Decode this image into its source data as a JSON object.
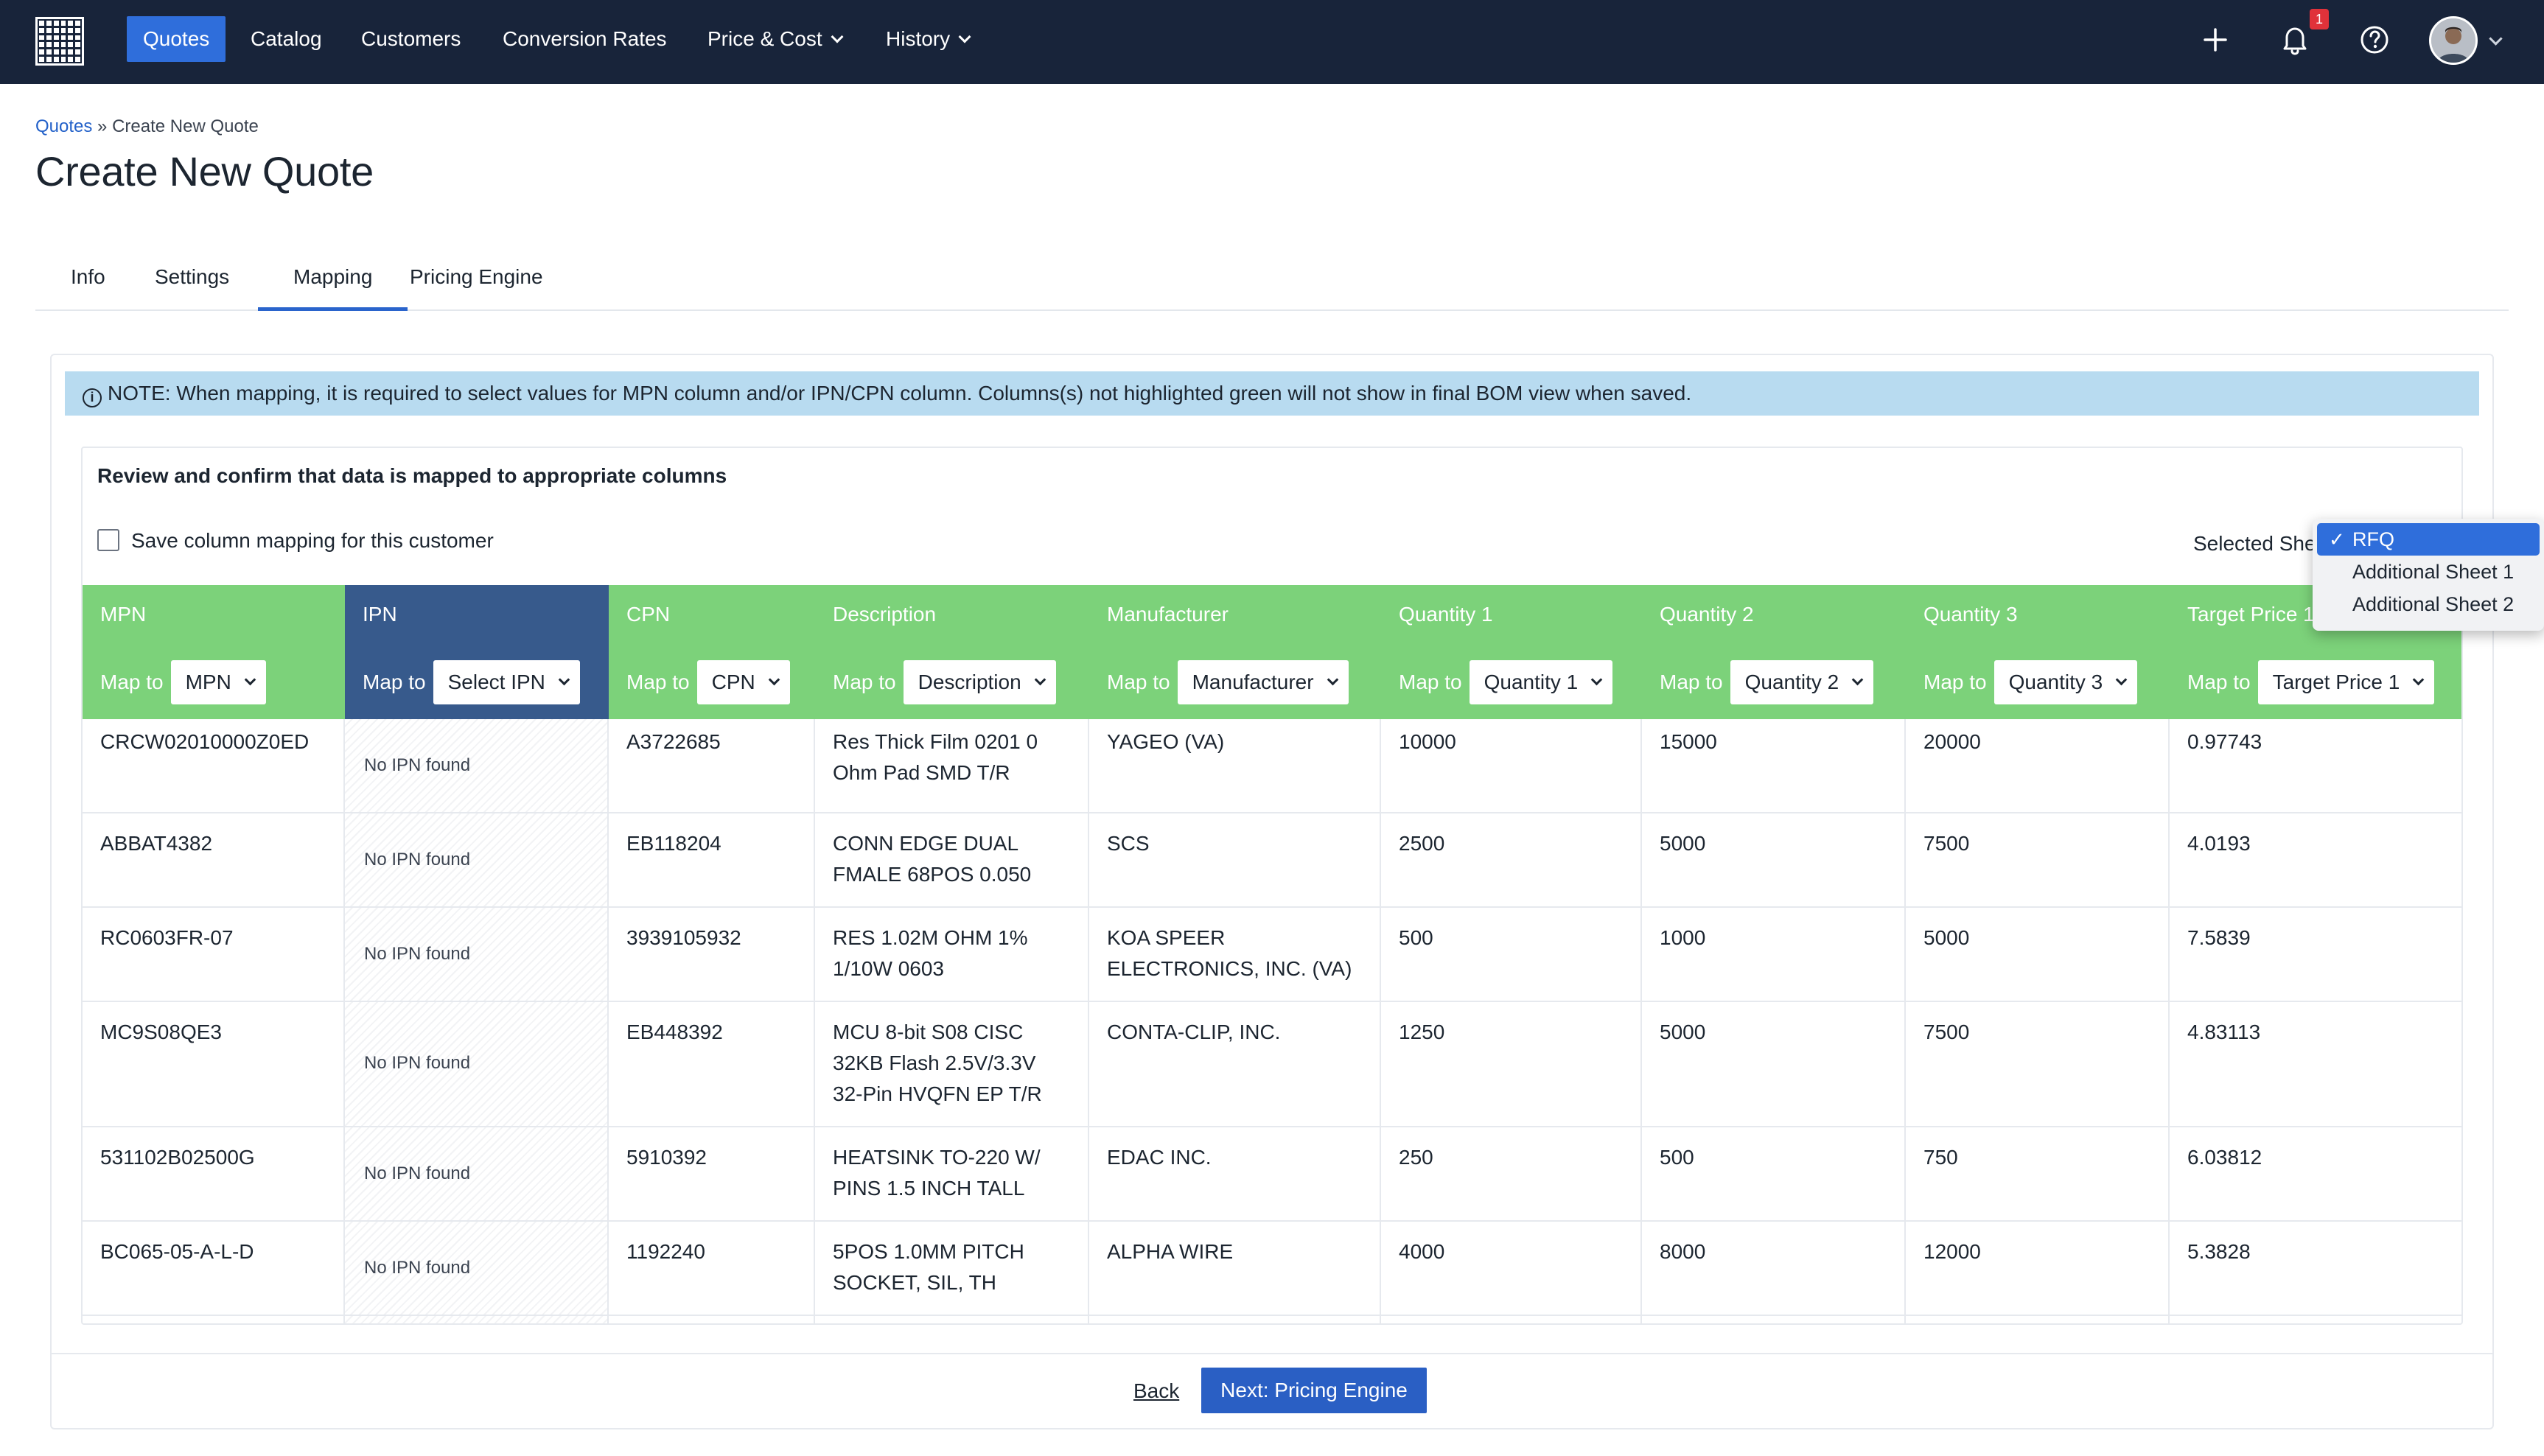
{
  "nav": {
    "items": [
      {
        "label": "Quotes",
        "active": true
      },
      {
        "label": "Catalog"
      },
      {
        "label": "Customers"
      },
      {
        "label": "Conversion Rates"
      },
      {
        "label": "Price & Cost",
        "dropdown": true
      },
      {
        "label": "History",
        "dropdown": true
      }
    ],
    "icons": [
      "apps-grid-icon",
      "plus-icon",
      "bell-icon",
      "help-icon",
      "avatar"
    ],
    "notification_count": "1"
  },
  "breadcrumb": {
    "root": "Quotes",
    "separator": " » ",
    "current": "Create New Quote"
  },
  "page_title": "Create New Quote",
  "tabs": [
    {
      "label": "Info"
    },
    {
      "label": "Settings"
    },
    {
      "label": "Mapping",
      "active": true
    },
    {
      "label": "Pricing Engine"
    }
  ],
  "note": "NOTE: When mapping, it is required to select values for MPN column and/or IPN/CPN column. Columns(s) not highlighted green will not show in final BOM view when saved.",
  "review_text": "Review and confirm that data is mapped to appropriate columns",
  "save_mapping_label": "Save column mapping for this customer",
  "selected_sheet_label": "Selected She",
  "sheet_options": [
    {
      "label": "RFQ",
      "selected": true
    },
    {
      "label": "Additional Sheet 1"
    },
    {
      "label": "Additional Sheet 2"
    }
  ],
  "map_to_label": "Map to",
  "columns": [
    {
      "title": "MPN",
      "map": "MPN",
      "mapped": true
    },
    {
      "title": "IPN",
      "map": "Select IPN",
      "mapped": false
    },
    {
      "title": "CPN",
      "map": "CPN",
      "mapped": true
    },
    {
      "title": "Description",
      "map": "Description",
      "mapped": true
    },
    {
      "title": "Manufacturer",
      "map": "Manufacturer",
      "mapped": true
    },
    {
      "title": "Quantity 1",
      "map": "Quantity 1",
      "mapped": true
    },
    {
      "title": "Quantity 2",
      "map": "Quantity 2",
      "mapped": true
    },
    {
      "title": "Quantity 3",
      "map": "Quantity 3",
      "mapped": true
    },
    {
      "title": "Target Price 1",
      "map": "Target Price 1",
      "mapped": true
    }
  ],
  "rows": [
    {
      "mpn": "CRCW02010000Z0ED",
      "ipn": "No IPN found",
      "cpn": "A3722685",
      "description": "Res Thick Film 0201 0 Ohm Pad SMD T/R",
      "manufacturer": "YAGEO (VA)",
      "q1": "10000",
      "q2": "15000",
      "q3": "20000",
      "price": "0.97743"
    },
    {
      "mpn": "ABBAT4382",
      "ipn": "No IPN found",
      "cpn": "EB118204",
      "description": "CONN EDGE DUAL FMALE 68POS 0.050",
      "manufacturer": "SCS",
      "q1": "2500",
      "q2": "5000",
      "q3": "7500",
      "price": "4.0193"
    },
    {
      "mpn": "RC0603FR-07",
      "ipn": "No IPN found",
      "cpn": "3939105932",
      "description": "RES 1.02M OHM 1% 1/10W 0603",
      "manufacturer": "KOA SPEER ELECTRONICS, INC. (VA)",
      "q1": "500",
      "q2": "1000",
      "q3": "5000",
      "price": "7.5839"
    },
    {
      "mpn": "MC9S08QE3",
      "ipn": "No IPN found",
      "cpn": "EB448392",
      "description": "MCU 8-bit S08 CISC 32KB Flash 2.5V/3.3V 32-Pin HVQFN EP T/R",
      "manufacturer": "CONTA-CLIP, INC.",
      "q1": "1250",
      "q2": "5000",
      "q3": "7500",
      "price": "4.83113"
    },
    {
      "mpn": "531102B02500G",
      "ipn": "No IPN found",
      "cpn": "5910392",
      "description": "HEATSINK TO-220 W/ PINS 1.5 INCH TALL",
      "manufacturer": "EDAC INC.",
      "q1": "250",
      "q2": "500",
      "q3": "750",
      "price": "6.03812"
    },
    {
      "mpn": "BC065-05-A-L-D",
      "ipn": "No IPN found",
      "cpn": "1192240",
      "description": "5POS 1.0MM PITCH SOCKET, SIL, TH",
      "manufacturer": "ALPHA WIRE",
      "q1": "4000",
      "q2": "8000",
      "q3": "12000",
      "price": "5.3828"
    }
  ],
  "footer": {
    "back_label": "Back",
    "next_label": "Next: Pricing Engine"
  },
  "colors": {
    "navbar": "#18243a",
    "accent": "#2f6edb",
    "mapped_column": "#7cd27a",
    "unmapped_column": "#375a8c",
    "note_bg": "#b8dbf0"
  }
}
